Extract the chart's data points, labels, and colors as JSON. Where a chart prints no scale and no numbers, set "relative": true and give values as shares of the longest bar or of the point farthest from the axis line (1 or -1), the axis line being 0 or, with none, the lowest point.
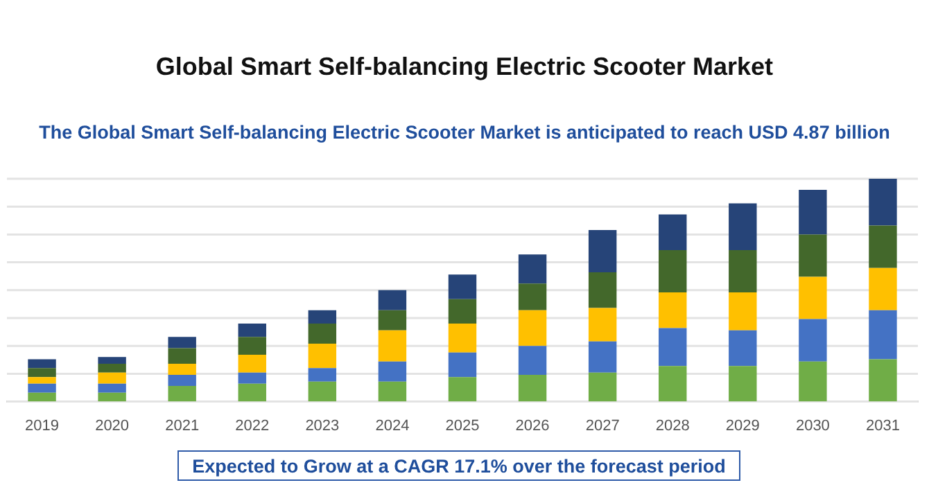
{
  "chart_data": {
    "type": "bar",
    "title": "Global Smart Self-balancing Electric Scooter Market",
    "subtitle": "The Global Smart Self-balancing Electric Scooter Market is anticipated to reach USD 4.87 billion",
    "annotations": [
      "Expected to Grow at a CAGR 17.1% over the forecast period"
    ],
    "categories": [
      "2019",
      "2020",
      "2021",
      "2022",
      "2023",
      "2024",
      "2025",
      "2026",
      "2027",
      "2028",
      "2029",
      "2030",
      "2031"
    ],
    "stacked": true,
    "relative": true,
    "grid": "y",
    "legend": false,
    "series": [
      {
        "color": "#70ad47",
        "values": [
          0.04,
          0.04,
          0.07,
          0.08,
          0.09,
          0.09,
          0.11,
          0.12,
          0.13,
          0.16,
          0.16,
          0.18,
          0.19
        ]
      },
      {
        "color": "#4472c4",
        "values": [
          0.04,
          0.04,
          0.05,
          0.05,
          0.06,
          0.09,
          0.11,
          0.13,
          0.14,
          0.17,
          0.16,
          0.19,
          0.22
        ]
      },
      {
        "color": "#ffc000",
        "values": [
          0.03,
          0.05,
          0.05,
          0.08,
          0.11,
          0.14,
          0.13,
          0.16,
          0.15,
          0.16,
          0.17,
          0.19,
          0.19
        ]
      },
      {
        "color": "#43682b",
        "values": [
          0.04,
          0.04,
          0.07,
          0.08,
          0.09,
          0.09,
          0.11,
          0.12,
          0.16,
          0.19,
          0.19,
          0.19,
          0.19
        ]
      },
      {
        "color": "#264478",
        "values": [
          0.04,
          0.03,
          0.05,
          0.06,
          0.06,
          0.09,
          0.11,
          0.13,
          0.19,
          0.16,
          0.21,
          0.2,
          0.21
        ]
      }
    ]
  }
}
